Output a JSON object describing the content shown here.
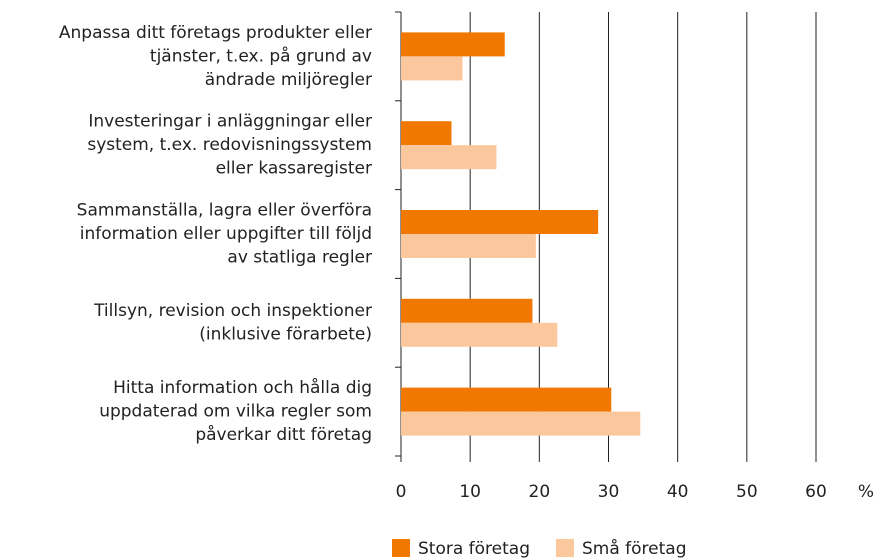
{
  "chart_data": {
    "type": "bar",
    "orientation": "horizontal",
    "categories": [
      [
        "Anpassa ditt företags produkter eller",
        "tjänster, t.ex. på grund av",
        "ändrade miljöregler"
      ],
      [
        "Investeringar i anläggningar eller",
        "system, t.ex. redovisningssystem",
        "eller kassaregister"
      ],
      [
        "Sammanställa, lagra eller överföra",
        "information eller uppgifter till följd",
        "av statliga regler"
      ],
      [
        "Tillsyn, revision och inspektioner",
        "(inklusive förarbete)"
      ],
      [
        "Hitta information och hålla dig",
        "uppdaterad om vilka regler som",
        "påverkar ditt företag"
      ]
    ],
    "series": [
      {
        "name": "Stora företag",
        "color": "#f07800",
        "values": [
          15,
          7.3,
          28.5,
          19,
          30.4
        ]
      },
      {
        "name": "Små företag",
        "color": "#fbc89e",
        "values": [
          8.9,
          13.8,
          19.5,
          22.6,
          34.6
        ]
      }
    ],
    "xlim": [
      0,
      60
    ],
    "xticks": [
      0,
      10,
      20,
      30,
      40,
      50,
      60
    ],
    "x_unit": "%",
    "grid": true,
    "legend": "bottom"
  }
}
